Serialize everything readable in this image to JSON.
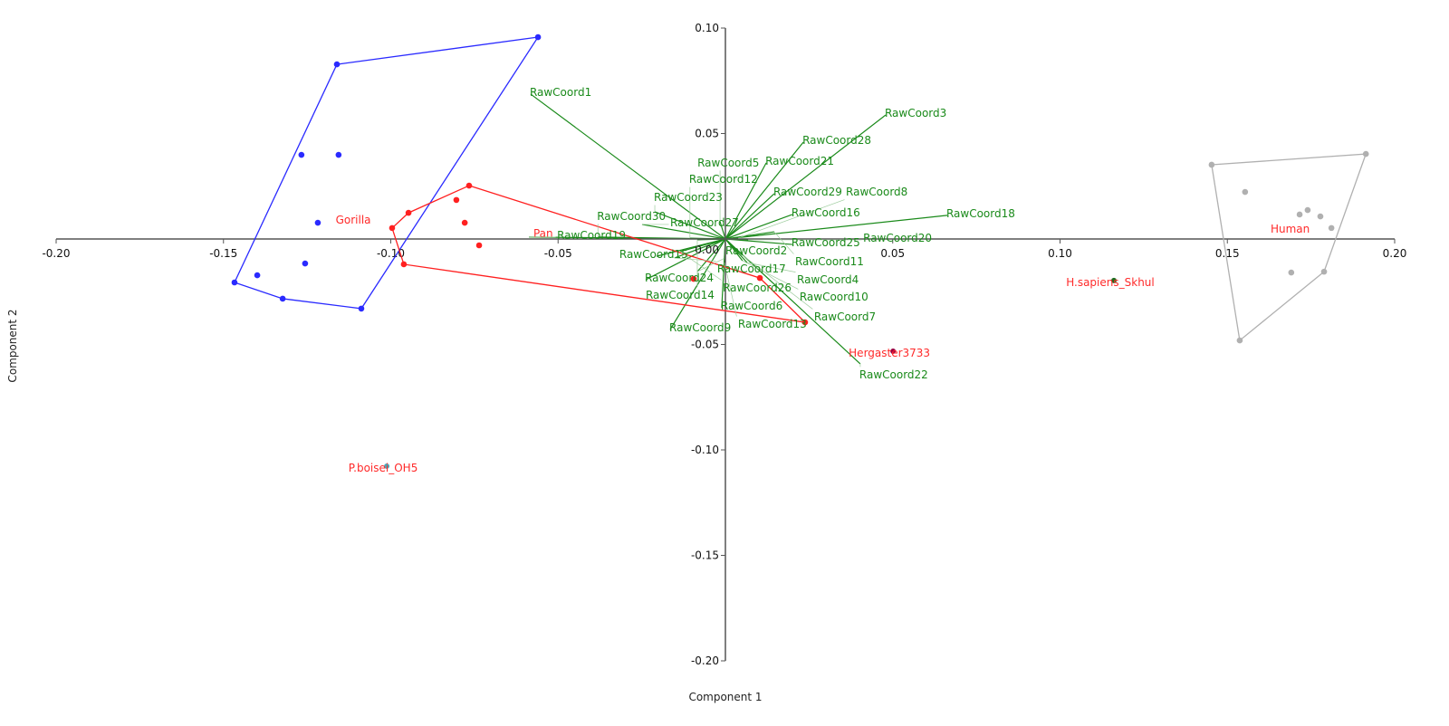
{
  "chart_data": {
    "type": "scatter",
    "title": "",
    "xlabel": "Component 1",
    "ylabel": "Component 2",
    "xlim": [
      -0.2,
      0.2
    ],
    "ylim": [
      -0.2,
      0.1
    ],
    "xticks": [
      "-0.20",
      "-0.15",
      "-0.10",
      "-0.05",
      "0.05",
      "0.10",
      "0.15",
      "0.20"
    ],
    "xtick_values": [
      -0.2,
      -0.15,
      -0.1,
      -0.05,
      0.05,
      0.1,
      0.15,
      0.2
    ],
    "yticks": [
      "0.10",
      "0.05",
      "-0.05",
      "-0.10",
      "-0.15",
      "-0.20"
    ],
    "ytick_values": [
      0.1,
      0.05,
      -0.05,
      -0.1,
      -0.15,
      -0.2
    ],
    "origin_label": "0.00",
    "grid": false,
    "groups": [
      {
        "name": "Gorilla",
        "color": "#2a2aff",
        "label_at": [
          -0.1154,
          0.0094
        ],
        "hull": [
          [
            -0.056,
            0.0957
          ],
          [
            -0.1161,
            0.0828
          ],
          [
            -0.1467,
            -0.0206
          ],
          [
            -0.1323,
            -0.0283
          ],
          [
            -0.1088,
            -0.033
          ]
        ],
        "points": [
          [
            -0.056,
            0.0957
          ],
          [
            -0.1161,
            0.0828
          ],
          [
            -0.1467,
            -0.0206
          ],
          [
            -0.1323,
            -0.0283
          ],
          [
            -0.1088,
            -0.033
          ],
          [
            -0.1267,
            0.0399
          ],
          [
            -0.1156,
            0.0399
          ],
          [
            -0.1218,
            0.0077
          ],
          [
            -0.1256,
            -0.0116
          ],
          [
            -0.1399,
            -0.0172
          ]
        ]
      },
      {
        "name": "Pan",
        "color": "#ff2020",
        "label_at": [
          -0.0563,
          -0.003
        ],
        "hull": [
          [
            -0.0766,
            0.0253
          ],
          [
            0.0103,
            -0.0185
          ],
          [
            0.0238,
            -0.0395
          ],
          [
            -0.0961,
            -0.012
          ],
          [
            -0.0996,
            0.0052
          ],
          [
            -0.0947,
            0.0124
          ]
        ],
        "points": [
          [
            -0.0766,
            0.0253
          ],
          [
            0.0103,
            -0.0185
          ],
          [
            0.0238,
            -0.0395
          ],
          [
            -0.0961,
            -0.012
          ],
          [
            -0.0996,
            0.0052
          ],
          [
            -0.0947,
            0.0124
          ],
          [
            -0.0804,
            0.0185
          ],
          [
            -0.0779,
            0.0077
          ],
          [
            -0.0736,
            -0.003
          ],
          [
            -0.0095,
            -0.0189
          ]
        ]
      },
      {
        "name": "Human",
        "color": "#b0b0b0",
        "label_at": [
          0.164,
          0.0052
        ],
        "hull": [
          [
            0.1453,
            0.0352
          ],
          [
            0.1914,
            0.0403
          ],
          [
            0.1789,
            -0.0155
          ],
          [
            0.1537,
            -0.0481
          ]
        ],
        "points": [
          [
            0.1453,
            0.0352
          ],
          [
            0.1914,
            0.0403
          ],
          [
            0.1789,
            -0.0155
          ],
          [
            0.1537,
            -0.0481
          ],
          [
            0.1553,
            0.0223
          ],
          [
            0.174,
            0.0137
          ],
          [
            0.1716,
            0.0116
          ],
          [
            0.1778,
            0.0107
          ],
          [
            0.1811,
            0.0052
          ],
          [
            0.1691,
            -0.0159
          ]
        ]
      }
    ],
    "specimens": [
      {
        "name": "Hergaster3733",
        "x": 0.0501,
        "y": -0.0532,
        "color": "#9a0040"
      },
      {
        "name": "H.sapiens_Skhul",
        "x": 0.1161,
        "y": -0.0197,
        "color": "#1f6b1f"
      },
      {
        "name": "P.boisei_OH5",
        "x": -0.1012,
        "y": -0.1077,
        "color": "#4aa8b8"
      }
    ],
    "vector_color": "#1a8a1a",
    "vectors": [
      {
        "name": "RawCoord1",
        "x": -0.0582,
        "y": 0.0687
      },
      {
        "name": "RawCoord2",
        "x": -0.0084,
        "y": -0.0155
      },
      {
        "name": "RawCoord3",
        "x": 0.0479,
        "y": 0.0588
      },
      {
        "name": "RawCoord4",
        "x": 0.0065,
        "y": -0.0112
      },
      {
        "name": "RawCoord5",
        "x": -0.0016,
        "y": 0.0082
      },
      {
        "name": "RawCoord6",
        "x": -0.0011,
        "y": -0.0326
      },
      {
        "name": "RawCoord7",
        "x": 0.0051,
        "y": -0.0077
      },
      {
        "name": "RawCoord8",
        "x": 0.0038,
        "y": 0.0004
      },
      {
        "name": "RawCoord9",
        "x": -0.0165,
        "y": -0.0429
      },
      {
        "name": "RawCoord10",
        "x": 0.0051,
        "y": -0.0103
      },
      {
        "name": "RawCoord11",
        "x": 0.0146,
        "y": 0.0034
      },
      {
        "name": "RawCoord12",
        "x": -0.0106,
        "y": 0.0004
      },
      {
        "name": "RawCoord13",
        "x": -0.0003,
        "y": -0.0112
      },
      {
        "name": "RawCoord14",
        "x": -0.0084,
        "y": -0.0004
      },
      {
        "name": "RawCoord15",
        "x": -0.0206,
        "y": -0.0082
      },
      {
        "name": "RawCoord16",
        "x": 0.02,
        "y": 0.0116
      },
      {
        "name": "RawCoord17",
        "x": -0.0152,
        "y": -0.009
      },
      {
        "name": "RawCoord18",
        "x": 0.0663,
        "y": 0.0112
      },
      {
        "name": "RawCoord19",
        "x": -0.0587,
        "y": 0.0009
      },
      {
        "name": "RawCoord20",
        "x": 0.0068,
        "y": -0.0004
      },
      {
        "name": "RawCoord21",
        "x": 0.0122,
        "y": 0.0361
      },
      {
        "name": "RawCoord22",
        "x": 0.0403,
        "y": -0.0592
      },
      {
        "name": "RawCoord23",
        "x": -0.0211,
        "y": 0.0129
      },
      {
        "name": "RawCoord24",
        "x": -0.0238,
        "y": -0.0193
      },
      {
        "name": "RawCoord25",
        "x": 0.02,
        "y": -0.0026
      },
      {
        "name": "RawCoord26",
        "x": -0.0135,
        "y": -0.006
      },
      {
        "name": "RawCoord27",
        "x": -0.0249,
        "y": 0.0069
      },
      {
        "name": "RawCoord28",
        "x": 0.0233,
        "y": 0.0459
      },
      {
        "name": "RawCoord29",
        "x": 0.0146,
        "y": 0.0215
      },
      {
        "name": "RawCoord30",
        "x": -0.0381,
        "y": 0.0009
      }
    ]
  }
}
